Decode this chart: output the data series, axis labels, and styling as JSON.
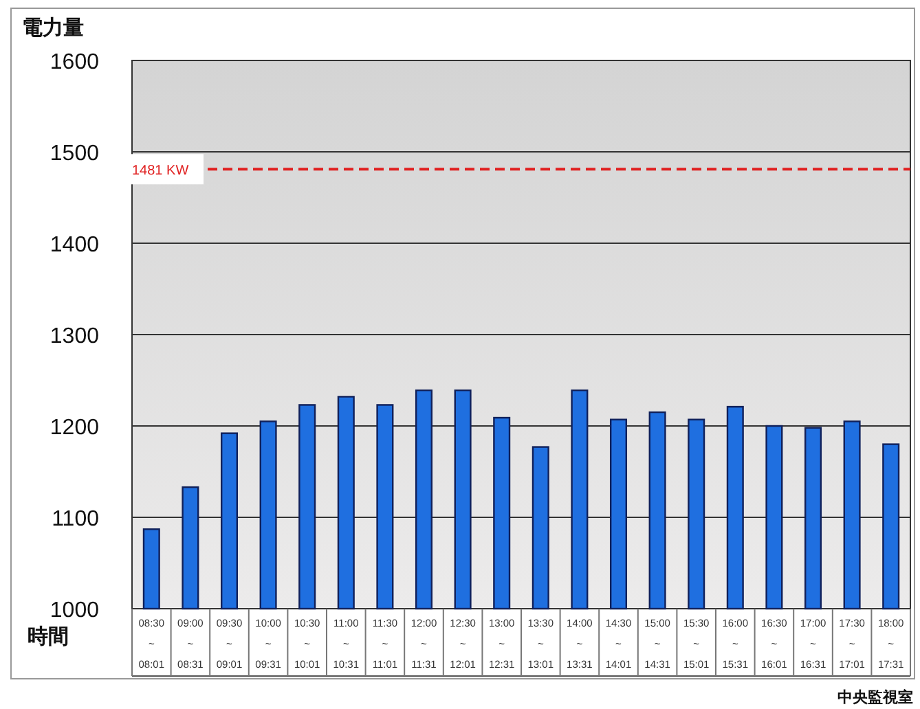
{
  "chart_data": {
    "type": "bar",
    "ylabel": "電力量",
    "xlabel": "時間",
    "categories": [
      "08:30\n~\n08:01",
      "09:00\n~\n08:31",
      "09:30\n~\n09:01",
      "10:00\n~\n09:31",
      "10:30\n~\n10:01",
      "11:00\n~\n10:31",
      "11:30\n~\n11:01",
      "12:00\n~\n11:31",
      "12:30\n~\n12:01",
      "13:00\n~\n12:31",
      "13:30\n~\n13:01",
      "14:00\n~\n13:31",
      "14:30\n~\n14:01",
      "15:00\n~\n14:31",
      "15:30\n~\n15:01",
      "16:00\n~\n15:31",
      "16:30\n~\n16:01",
      "17:00\n~\n16:31",
      "17:30\n~\n17:01",
      "18:00\n~\n17:31"
    ],
    "values": [
      1087,
      1133,
      1192,
      1205,
      1223,
      1232,
      1223,
      1239,
      1239,
      1209,
      1177,
      1239,
      1207,
      1215,
      1207,
      1221,
      1200,
      1198,
      1205,
      1180
    ],
    "color": "#1f6fe0",
    "ylim": [
      1000,
      1600
    ],
    "yticks": [
      1000,
      1100,
      1200,
      1300,
      1400,
      1500,
      1600
    ],
    "grid": "y",
    "ref_lines": [
      {
        "axis": "y",
        "value": 1481,
        "label": "1481 KW",
        "color": "#e02020",
        "line_style": "dashed"
      }
    ],
    "annotations": [
      "中央監視室"
    ]
  }
}
